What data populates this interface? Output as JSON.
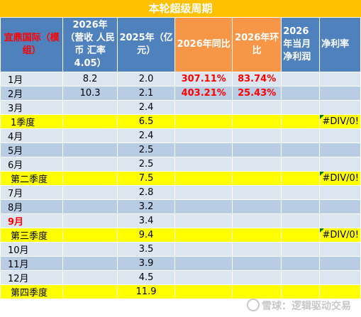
{
  "title": "本轮超级周期",
  "headers": {
    "c1": "宜鼎国际（模组）",
    "c2": "2026年（营收 人民币 汇率4.05）",
    "c3": "2025年（亿元）",
    "c4": "2026年同比",
    "c5": "2026年环比",
    "c6": "2026年当月净利润",
    "c7": "净利率"
  },
  "rows": [
    {
      "label": "1月",
      "v2026": "8.2",
      "v2025": "2.0",
      "yoy": "307.11%",
      "mom": "83.74%",
      "profit": "",
      "margin": ""
    },
    {
      "label": "2月",
      "v2026": "10.3",
      "v2025": "2.1",
      "yoy": "403.21%",
      "mom": "25.43%",
      "profit": "",
      "margin": ""
    },
    {
      "label": "3月",
      "v2026": "",
      "v2025": "2.4",
      "yoy": "",
      "mom": "",
      "profit": "",
      "margin": ""
    },
    {
      "label": "1季度",
      "v2026": "",
      "v2025": "6.5",
      "yoy": "",
      "mom": "",
      "profit": "",
      "margin": "#DIV/0!"
    },
    {
      "label": "4月",
      "v2026": "",
      "v2025": "2.4",
      "yoy": "",
      "mom": "",
      "profit": "",
      "margin": ""
    },
    {
      "label": "5月",
      "v2026": "",
      "v2025": "2.5",
      "yoy": "",
      "mom": "",
      "profit": "",
      "margin": ""
    },
    {
      "label": "6月",
      "v2026": "",
      "v2025": "2.5",
      "yoy": "",
      "mom": "",
      "profit": "",
      "margin": ""
    },
    {
      "label": "第二季度",
      "v2026": "",
      "v2025": "7.5",
      "yoy": "",
      "mom": "",
      "profit": "",
      "margin": "#DIV/0!"
    },
    {
      "label": "7月",
      "v2026": "",
      "v2025": "2.8",
      "yoy": "",
      "mom": "",
      "profit": "",
      "margin": ""
    },
    {
      "label": "8月",
      "v2026": "",
      "v2025": "3.2",
      "yoy": "",
      "mom": "",
      "profit": "",
      "margin": ""
    },
    {
      "label": "9月",
      "v2026": "",
      "v2025": "3.4",
      "yoy": "",
      "mom": "",
      "profit": "",
      "margin": ""
    },
    {
      "label": "第三季度",
      "v2026": "",
      "v2025": "9.4",
      "yoy": "",
      "mom": "",
      "profit": "",
      "margin": "#DIV/0!"
    },
    {
      "label": "10月",
      "v2026": "",
      "v2025": "3.5",
      "yoy": "",
      "mom": "",
      "profit": "",
      "margin": ""
    },
    {
      "label": "11月",
      "v2026": "",
      "v2025": "3.9",
      "yoy": "",
      "mom": "",
      "profit": "",
      "margin": ""
    },
    {
      "label": "12月",
      "v2026": "",
      "v2025": "4.5",
      "yoy": "",
      "mom": "",
      "profit": "",
      "margin": ""
    },
    {
      "label": "第四季度",
      "v2026": "",
      "v2025": "11.9",
      "yoy": "",
      "mom": "",
      "profit": "",
      "margin": ""
    }
  ],
  "watermark": "雪球：逻辑驱动交易",
  "colors": {
    "title_bg": "#ffc000",
    "header_blue": "#4f81bd",
    "header_orange": "#f79646",
    "row_light": "#dce6f1",
    "row_dark": "#b8cce4",
    "quarter_yellow": "#ffff00",
    "accent_red": "#ff0000"
  }
}
